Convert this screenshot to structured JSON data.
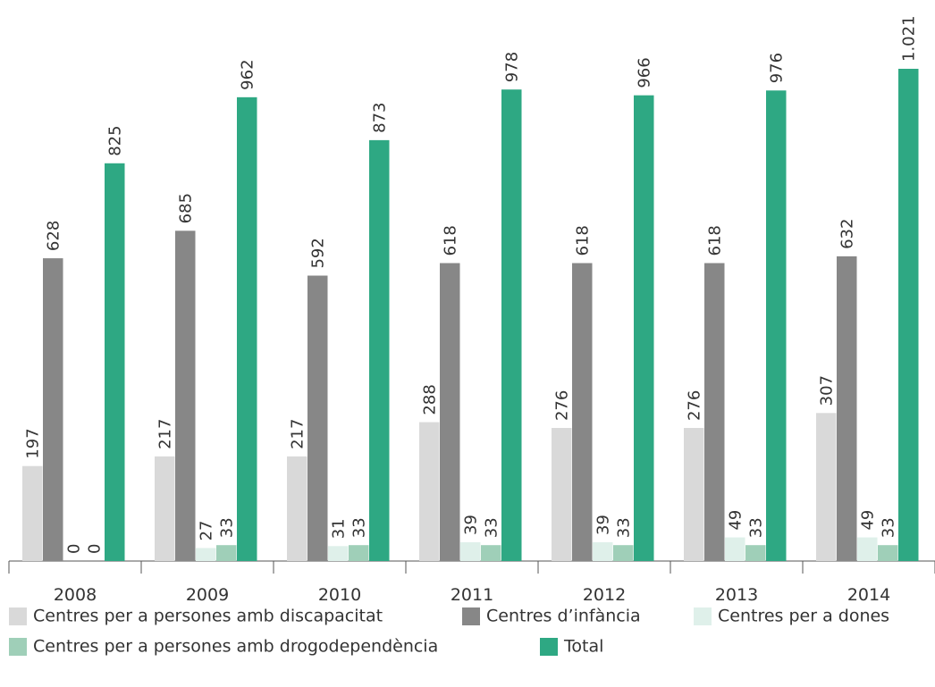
{
  "chart_data": {
    "type": "bar",
    "categories": [
      "2008",
      "2009",
      "2010",
      "2011",
      "2012",
      "2013",
      "2014"
    ],
    "series": [
      {
        "name": "Centres per a persones amb discapacitat",
        "color": "#d9d9d9",
        "values": [
          197,
          217,
          217,
          288,
          276,
          276,
          307
        ]
      },
      {
        "name": "Centres d’infància",
        "color": "#878787",
        "values": [
          628,
          685,
          592,
          618,
          618,
          618,
          632
        ]
      },
      {
        "name": "Centres per a dones",
        "color": "#dff0ea",
        "values": [
          0,
          27,
          31,
          39,
          39,
          49,
          49
        ]
      },
      {
        "name": "Centres per a persones amb drogodependència",
        "color": "#9fcfb8",
        "values": [
          0,
          33,
          33,
          33,
          33,
          33,
          33
        ]
      },
      {
        "name": "Total",
        "color": "#2ea883",
        "values": [
          825,
          962,
          873,
          978,
          966,
          976,
          1021
        ],
        "value_labels": [
          "825",
          "962",
          "873",
          "978",
          "966",
          "976",
          "1.021"
        ]
      }
    ]
  }
}
